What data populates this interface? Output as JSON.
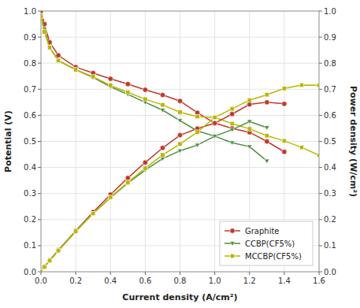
{
  "chart_data": {
    "type": "line",
    "xlabel": "Current density (A/cm²)",
    "ylabel": "Potential (V)",
    "y2label": "Power density (W/cm²)",
    "xlim": [
      0,
      1.6
    ],
    "ylim": [
      0.0,
      1.0
    ],
    "y2lim": [
      0.0,
      1.0
    ],
    "xticks": [
      {
        "value": 0.0,
        "label": "0.0"
      },
      0.2,
      0.4,
      0.6,
      0.8,
      {
        "value": 1.0,
        "label": "1.0"
      },
      1.2,
      1.4,
      1.6
    ],
    "yticks": [
      {
        "value": 0.0,
        "label": "0.0"
      },
      0.1,
      0.2,
      0.3,
      0.4,
      0.5,
      0.6,
      0.7,
      0.8,
      0.9,
      {
        "value": 1.0,
        "label": "1.0"
      }
    ],
    "y2ticks": [
      {
        "value": 0.0,
        "label": "0.0"
      },
      0.1,
      0.2,
      0.3,
      0.4,
      0.5,
      0.6,
      0.7,
      0.8,
      0.9,
      {
        "value": 1.0,
        "label": "1.0"
      }
    ],
    "grid": true,
    "legend": "lower right",
    "series": [
      {
        "name": "Graphite",
        "color": "#c0392b",
        "marker": "circle",
        "x": [
          0.0,
          0.02,
          0.05,
          0.1,
          0.2,
          0.3,
          0.4,
          0.5,
          0.6,
          0.7,
          0.8,
          0.9,
          1.0,
          1.1,
          1.2,
          1.3,
          1.4
        ],
        "values": [
          1.0,
          0.95,
          0.88,
          0.83,
          0.785,
          0.762,
          0.74,
          0.72,
          0.698,
          0.678,
          0.655,
          0.61,
          0.57,
          0.55,
          0.535,
          0.5,
          0.46
        ]
      },
      {
        "name": "CCBP(CF5%)",
        "color": "#4d8c3f",
        "marker": "triangle-down",
        "x": [
          0.0,
          0.02,
          0.05,
          0.1,
          0.2,
          0.3,
          0.4,
          0.5,
          0.6,
          0.7,
          0.8,
          0.9,
          1.0,
          1.1,
          1.2,
          1.3
        ],
        "values": [
          0.98,
          0.93,
          0.86,
          0.81,
          0.775,
          0.745,
          0.71,
          0.68,
          0.65,
          0.62,
          0.58,
          0.54,
          0.52,
          0.495,
          0.48,
          0.425
        ]
      },
      {
        "name": "MCCBP(CF5%)",
        "color": "#b8b800",
        "marker": "square",
        "x": [
          0.0,
          0.02,
          0.05,
          0.1,
          0.2,
          0.3,
          0.4,
          0.5,
          0.6,
          0.7,
          0.8,
          0.9,
          1.0,
          1.1,
          1.2,
          1.3,
          1.4,
          1.5,
          1.6
        ],
        "values": [
          0.98,
          0.92,
          0.86,
          0.81,
          0.775,
          0.748,
          0.715,
          0.688,
          0.662,
          0.64,
          0.612,
          0.595,
          0.592,
          0.568,
          0.548,
          0.522,
          0.502,
          0.477,
          0.447
        ]
      },
      {
        "axis": "y2",
        "color": "#c0392b",
        "marker": "circle",
        "x": [
          0.0,
          0.02,
          0.05,
          0.1,
          0.2,
          0.3,
          0.4,
          0.5,
          0.6,
          0.7,
          0.8,
          0.9,
          1.0,
          1.1,
          1.2,
          1.3,
          1.4
        ],
        "values": [
          0.0,
          0.019,
          0.044,
          0.083,
          0.157,
          0.229,
          0.296,
          0.36,
          0.419,
          0.475,
          0.524,
          0.549,
          0.57,
          0.605,
          0.642,
          0.65,
          0.644
        ]
      },
      {
        "axis": "y2",
        "color": "#4d8c3f",
        "marker": "triangle-down",
        "x": [
          0.0,
          0.02,
          0.05,
          0.1,
          0.2,
          0.3,
          0.4,
          0.5,
          0.6,
          0.7,
          0.8,
          0.9,
          1.0,
          1.1,
          1.2,
          1.3
        ],
        "values": [
          0.0,
          0.0186,
          0.043,
          0.081,
          0.155,
          0.2235,
          0.284,
          0.34,
          0.39,
          0.434,
          0.464,
          0.486,
          0.52,
          0.545,
          0.576,
          0.553
        ]
      },
      {
        "axis": "y2",
        "color": "#b8b800",
        "marker": "square",
        "x": [
          0.0,
          0.02,
          0.05,
          0.1,
          0.2,
          0.3,
          0.4,
          0.5,
          0.6,
          0.7,
          0.8,
          0.9,
          1.0,
          1.1,
          1.2,
          1.3,
          1.4,
          1.5,
          1.6
        ],
        "values": [
          0.0,
          0.0184,
          0.043,
          0.081,
          0.155,
          0.2235,
          0.286,
          0.3425,
          0.397,
          0.448,
          0.49,
          0.536,
          0.592,
          0.625,
          0.658,
          0.679,
          0.703,
          0.716,
          0.715
        ]
      }
    ]
  }
}
